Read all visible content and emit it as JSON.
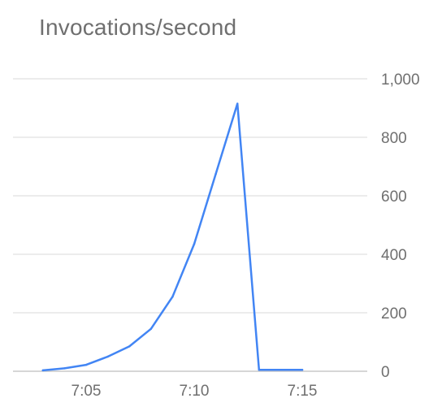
{
  "chart_data": {
    "type": "line",
    "title": "Invocations/second",
    "xlabel": "",
    "ylabel": "",
    "ylim": [
      0,
      1000
    ],
    "y_ticks": [
      0,
      200,
      400,
      600,
      800,
      1000
    ],
    "y_tick_labels": [
      "0",
      "200",
      "400",
      "600",
      "800",
      "1,000"
    ],
    "x_ticks": [
      "7:05",
      "7:10",
      "7:15"
    ],
    "xlim": [
      "7:02",
      "7:18"
    ],
    "y_axis_position": "right",
    "grid": true,
    "legend": "none",
    "series": [
      {
        "color": "#4285f4",
        "x": [
          "7:03",
          "7:04",
          "7:05",
          "7:06",
          "7:07",
          "7:08",
          "7:09",
          "7:10",
          "7:11",
          "7:12",
          "7:13",
          "7:14",
          "7:15"
        ],
        "values": [
          3,
          10,
          22,
          50,
          85,
          145,
          255,
          435,
          675,
          915,
          5,
          5,
          5
        ]
      }
    ]
  }
}
